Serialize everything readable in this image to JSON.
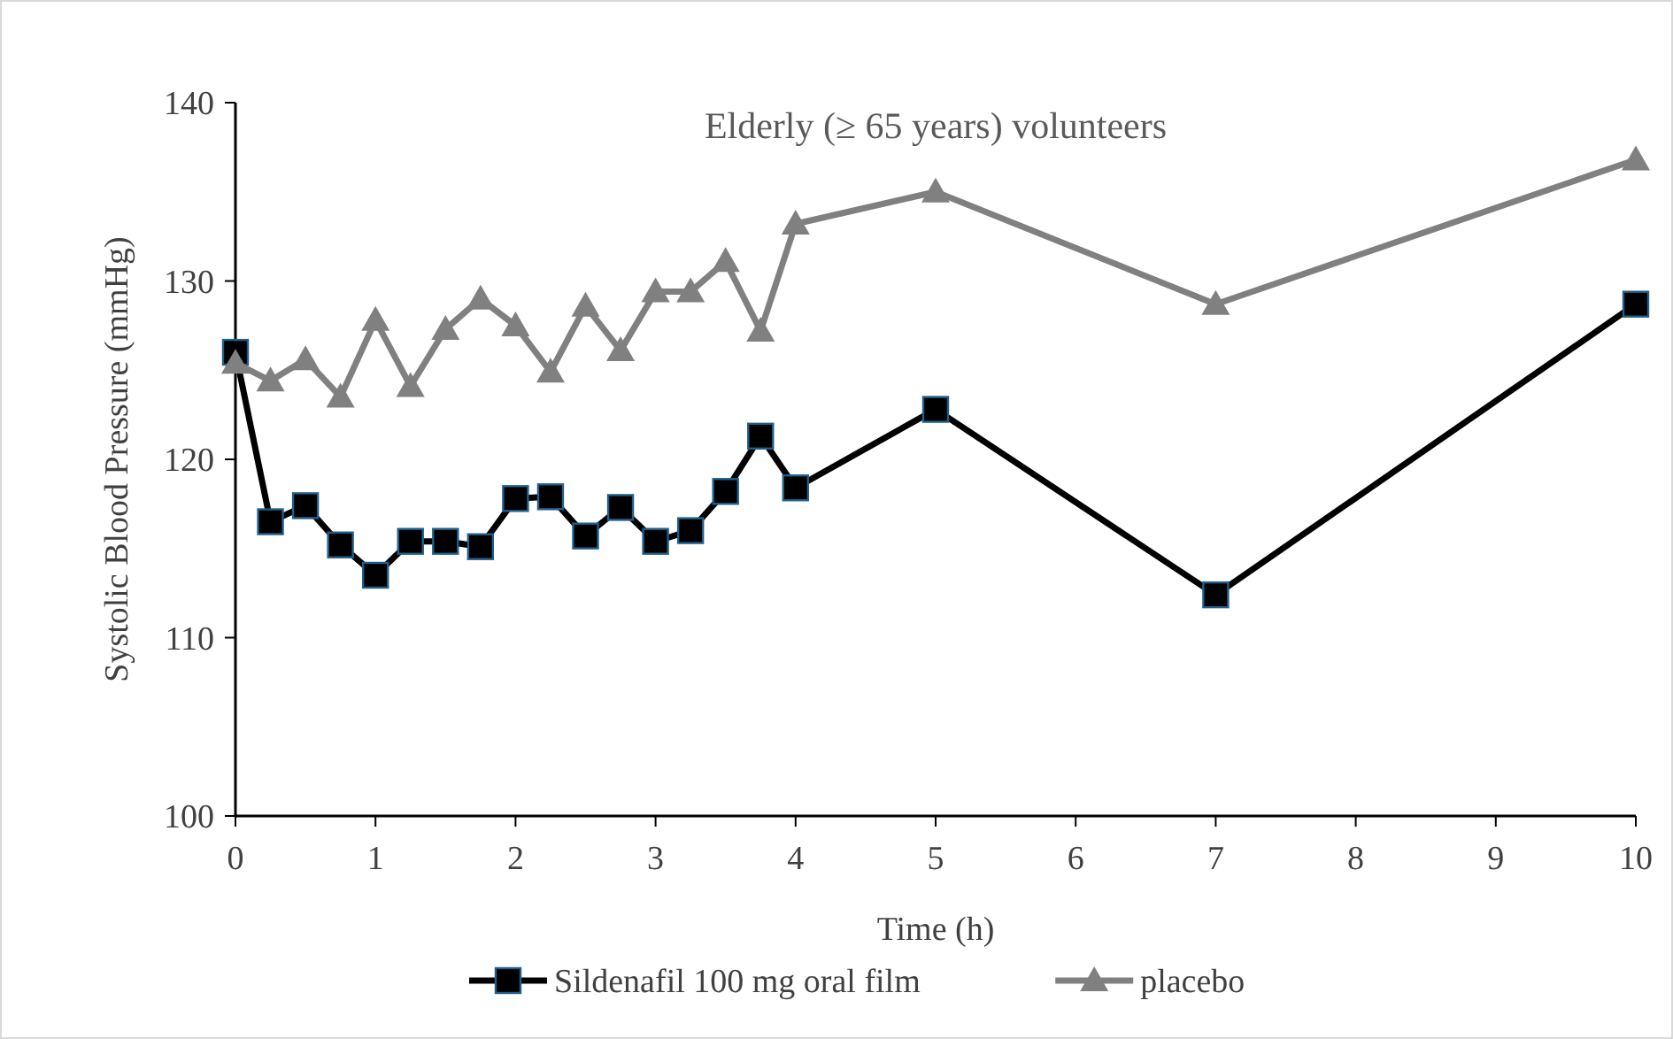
{
  "chart_data": {
    "type": "line",
    "title": "Elderly (≥ 65 years) volunteers",
    "xlabel": "Time (h)",
    "ylabel": "Systolic Blood Pressure (mmHg)",
    "x": [
      0,
      0.25,
      0.5,
      0.75,
      1,
      1.25,
      1.5,
      1.75,
      2,
      2.25,
      2.5,
      2.75,
      3,
      3.25,
      3.5,
      3.75,
      4,
      5,
      7,
      10
    ],
    "series": [
      {
        "name": "Sildenafil 100 mg oral film",
        "color": "#000000",
        "marker": "square",
        "values": [
          126.0,
          116.5,
          117.4,
          115.2,
          113.5,
          115.4,
          115.4,
          115.1,
          117.8,
          117.9,
          115.7,
          117.3,
          115.4,
          116.0,
          118.2,
          121.3,
          118.4,
          122.8,
          112.4,
          128.7
        ]
      },
      {
        "name": "placebo",
        "color": "#808080",
        "marker": "triangle",
        "values": [
          125.4,
          124.4,
          125.6,
          123.5,
          127.8,
          124.1,
          127.3,
          129.0,
          127.5,
          124.9,
          128.6,
          126.1,
          129.4,
          129.4,
          131.1,
          127.2,
          133.2,
          135.0,
          128.7,
          136.8
        ]
      }
    ],
    "xlim": [
      0,
      10
    ],
    "xticks": [
      0,
      1,
      2,
      3,
      4,
      5,
      6,
      7,
      8,
      9,
      10
    ],
    "ylim": [
      100,
      140
    ],
    "yticks": [
      100,
      110,
      120,
      130,
      140
    ],
    "grid": false,
    "legend": "bottom"
  }
}
